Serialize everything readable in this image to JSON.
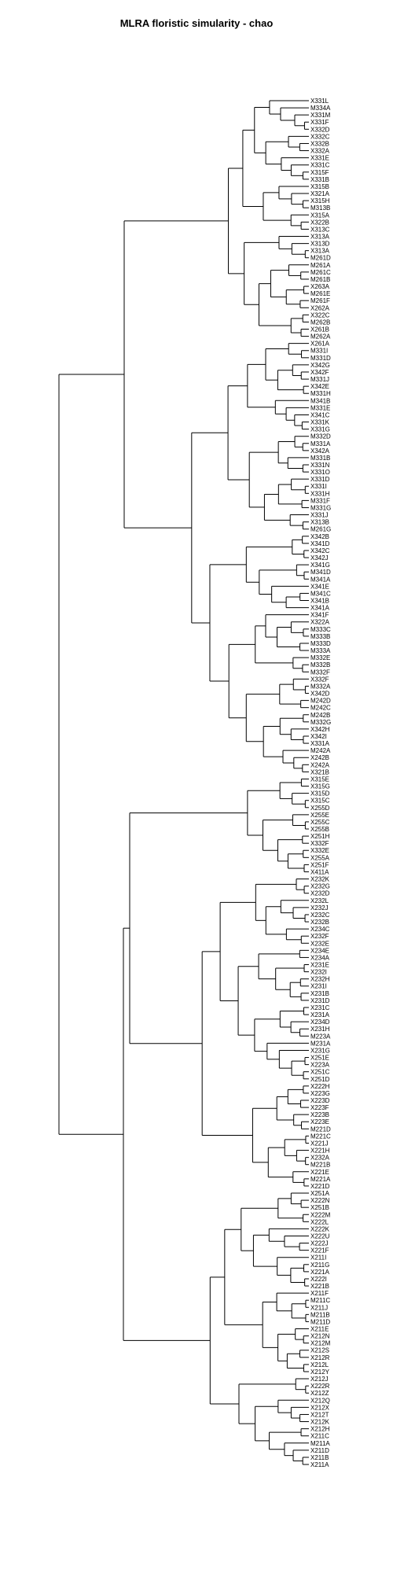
{
  "chart_data": {
    "type": "dendrogram",
    "title": "MLRA floristic simularity - chao",
    "leaves": [
      "X331L",
      "M334A",
      "X331M",
      "X331F",
      "X332D",
      "X332C",
      "X332B",
      "X332A",
      "X331E",
      "X331C",
      "X315F",
      "X331B",
      "X315B",
      "X321A",
      "X315H",
      "M313B",
      "X315A",
      "X322B",
      "X313C",
      "X313A",
      "X313D",
      "X313A",
      "M261D",
      "M261A",
      "M261C",
      "M261B",
      "X263A",
      "M261E",
      "M261F",
      "X262A",
      "X322C",
      "M262B",
      "X261B",
      "M262A",
      "X261A",
      "M331I",
      "M331D",
      "X342G",
      "X342F",
      "M331J",
      "X342E",
      "M331H",
      "M341B",
      "M331E",
      "X341C",
      "X331K",
      "X331G",
      "M332D",
      "M331A",
      "X342A",
      "M331B",
      "X331N",
      "X331O",
      "X331D",
      "X331I",
      "X331H",
      "M331F",
      "M331G",
      "X331J",
      "X313B",
      "M261G",
      "X342B",
      "X341D",
      "X342C",
      "X342J",
      "X341G",
      "M341D",
      "M341A",
      "X341E",
      "M341C",
      "X341B",
      "X341A",
      "X341F",
      "X322A",
      "M333C",
      "M333B",
      "M333D",
      "M333A",
      "M332E",
      "M332B",
      "M332F",
      "X332F",
      "M332A",
      "X342D",
      "M242D",
      "M242C",
      "M242B",
      "M332G",
      "X342H",
      "X342I",
      "X331A",
      "M242A",
      "X242B",
      "X242A",
      "X321B",
      "X315E",
      "X315G",
      "X315D",
      "X315C",
      "X255D",
      "X255E",
      "X255C",
      "X255B",
      "X251H",
      "X332F",
      "X332E",
      "X255A",
      "X251F",
      "X411A",
      "X232K",
      "X232G",
      "X232D",
      "X232L",
      "X232J",
      "X232C",
      "X232B",
      "X234C",
      "X232F",
      "X232E",
      "X234E",
      "X234A",
      "X231E",
      "X232I",
      "X232H",
      "X231I",
      "X231B",
      "X231D",
      "X231C",
      "X231A",
      "X234D",
      "X231H",
      "M223A",
      "M231A",
      "X231G",
      "X251E",
      "X223A",
      "X251C",
      "X251D",
      "X222H",
      "X223G",
      "X223D",
      "X223F",
      "X223B",
      "X223E",
      "M221D",
      "M221C",
      "X221J",
      "X221H",
      "X232A",
      "M221B",
      "X221E",
      "M221A",
      "X221D",
      "X251A",
      "X222N",
      "X251B",
      "X222M",
      "X222L",
      "X222K",
      "X222U",
      "X222J",
      "X221F",
      "X211I",
      "X211G",
      "X221A",
      "X222I",
      "X221B",
      "X211F",
      "M211C",
      "X211J",
      "M211B",
      "M211D",
      "X211E",
      "X212N",
      "X212M",
      "X212S",
      "X212R",
      "X212L",
      "X212Y",
      "X212J",
      "X222R",
      "X212Z",
      "X212Q",
      "X212X",
      "X212T",
      "X212K",
      "X212H",
      "X211C",
      "M211A",
      "X211D",
      "X211B",
      "X211A"
    ]
  }
}
